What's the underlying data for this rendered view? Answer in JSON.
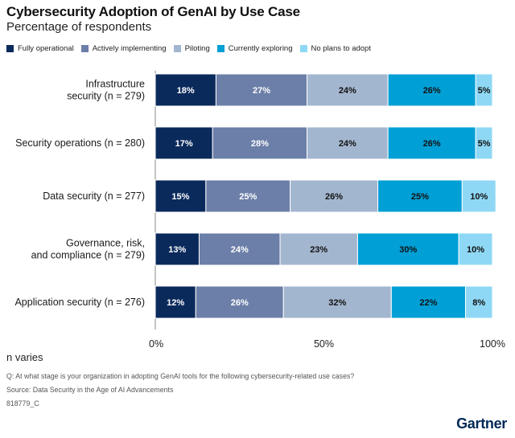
{
  "header": {
    "title": "Cybersecurity Adoption of GenAI by Use Case",
    "subtitle": "Percentage of respondents"
  },
  "footer": {
    "note": "n varies",
    "question": "Q: At what stage is your organization in adopting GenAI tools for the following cybersecurity-related use cases?",
    "source": "Source: Data Security in the Age of AI Advancements",
    "code": "818779_C",
    "logo": "Gartner"
  },
  "chart_data": {
    "type": "bar",
    "orientation": "horizontal",
    "stacked": true,
    "categories": [
      [
        "Infrastructure",
        "security (n = 279)"
      ],
      [
        "Security operations (n = 280)"
      ],
      [
        "Data security (n = 277)"
      ],
      [
        "Governance, risk,",
        "and compliance (n = 279)"
      ],
      [
        "Application security (n = 276)"
      ]
    ],
    "series": [
      {
        "name": "Fully operational",
        "color": "#0b2a5c",
        "values": [
          18,
          17,
          15,
          13,
          12
        ]
      },
      {
        "name": "Actively implementing",
        "color": "#6b7fa8",
        "values": [
          27,
          28,
          25,
          24,
          26
        ]
      },
      {
        "name": "Piloting",
        "color": "#a3b6cf",
        "values": [
          24,
          24,
          26,
          23,
          32
        ]
      },
      {
        "name": "Currently exploring",
        "color": "#009fd6",
        "values": [
          26,
          26,
          25,
          30,
          22
        ]
      },
      {
        "name": "No plans to adopt",
        "color": "#8fd8f5",
        "values": [
          5,
          5,
          10,
          10,
          8
        ]
      }
    ],
    "value_format": "%",
    "xlim": [
      0,
      100
    ],
    "xticks": [
      "0%",
      "50%",
      "100%"
    ],
    "legend_position": "top"
  }
}
